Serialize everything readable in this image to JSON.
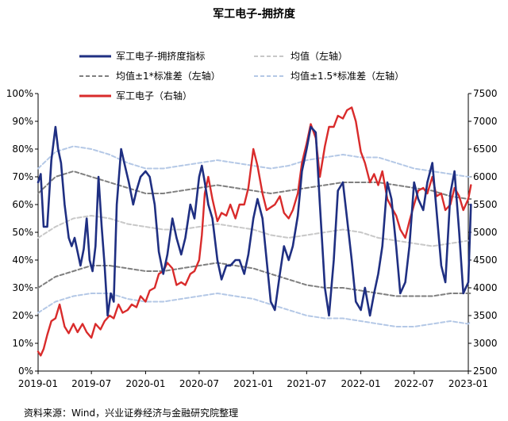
{
  "chart_data": {
    "type": "line",
    "title": "军工电子-拥挤度",
    "source": "资料来源：Wind，兴业证券经济与金融研究院整理",
    "x_ticks": [
      "2019-01",
      "2019-07",
      "2020-01",
      "2020-07",
      "2021-01",
      "2021-07",
      "2022-01",
      "2022-07",
      "2023-01"
    ],
    "x_range": [
      "2019-01",
      "2023-01"
    ],
    "y_left": {
      "ticks": [
        "0%",
        "10%",
        "20%",
        "30%",
        "40%",
        "50%",
        "60%",
        "70%",
        "80%",
        "90%",
        "100%"
      ],
      "range": [
        0,
        100
      ]
    },
    "y_right": {
      "ticks": [
        "2500",
        "3000",
        "3500",
        "4000",
        "4500",
        "5000",
        "5500",
        "6000",
        "6500",
        "7000",
        "7500"
      ],
      "range": [
        2500,
        7500
      ]
    },
    "legend": {
      "placement": "top",
      "items": [
        "军工电子-拥挤度指标",
        "均值（左轴）",
        "均值±1*标准差（左轴）",
        "均值±1.5*标准差（左轴）",
        "军工电子（右轴）"
      ]
    },
    "colors": {
      "crowding": "#1f2f82",
      "mean": "#c8c8c8",
      "std1": "#7f7f7f",
      "std15": "#b4c8e6",
      "index": "#d92b2b"
    },
    "series": [
      {
        "name": "军工电子-拥挤度指标",
        "axis": "left",
        "style": "solid",
        "x": [
          "2019-01-01",
          "2019-01-10",
          "2019-01-20",
          "2019-02-01",
          "2019-02-15",
          "2019-03-01",
          "2019-03-10",
          "2019-03-20",
          "2019-04-01",
          "2019-04-15",
          "2019-04-25",
          "2019-05-05",
          "2019-05-15",
          "2019-05-25",
          "2019-06-05",
          "2019-06-15",
          "2019-06-25",
          "2019-07-05",
          "2019-07-15",
          "2019-07-25",
          "2019-08-05",
          "2019-08-15",
          "2019-08-25",
          "2019-09-05",
          "2019-09-15",
          "2019-09-25",
          "2019-10-10",
          "2019-10-25",
          "2019-11-05",
          "2019-11-20",
          "2019-12-01",
          "2019-12-15",
          "2020-01-01",
          "2020-01-15",
          "2020-02-01",
          "2020-02-15",
          "2020-03-01",
          "2020-03-15",
          "2020-04-01",
          "2020-04-15",
          "2020-05-01",
          "2020-05-15",
          "2020-06-01",
          "2020-06-15",
          "2020-07-01",
          "2020-07-10",
          "2020-07-20",
          "2020-08-01",
          "2020-08-15",
          "2020-09-01",
          "2020-09-15",
          "2020-10-01",
          "2020-10-15",
          "2020-11-01",
          "2020-11-15",
          "2020-12-01",
          "2020-12-15",
          "2021-01-01",
          "2021-01-15",
          "2021-02-01",
          "2021-02-15",
          "2021-03-01",
          "2021-03-15",
          "2021-04-01",
          "2021-04-15",
          "2021-05-01",
          "2021-05-15",
          "2021-06-01",
          "2021-06-15",
          "2021-07-01",
          "2021-07-15",
          "2021-08-01",
          "2021-08-15",
          "2021-09-01",
          "2021-09-15",
          "2021-10-01",
          "2021-10-15",
          "2021-11-01",
          "2021-11-15",
          "2021-12-01",
          "2021-12-15",
          "2022-01-01",
          "2022-01-15",
          "2022-02-01",
          "2022-02-15",
          "2022-03-01",
          "2022-03-15",
          "2022-04-01",
          "2022-04-15",
          "2022-05-01",
          "2022-05-15",
          "2022-06-01",
          "2022-06-15",
          "2022-07-01",
          "2022-07-15",
          "2022-08-01",
          "2022-08-15",
          "2022-09-01",
          "2022-09-15",
          "2022-10-01",
          "2022-10-15",
          "2022-11-01",
          "2022-11-15",
          "2022-12-01",
          "2022-12-15",
          "2023-01-01",
          "2023-01-10"
        ],
        "values": [
          68,
          71,
          52,
          52,
          76,
          88,
          80,
          75,
          60,
          48,
          45,
          48,
          43,
          38,
          44,
          55,
          40,
          36,
          45,
          70,
          52,
          38,
          20,
          28,
          25,
          60,
          80,
          73,
          68,
          60,
          65,
          70,
          72,
          70,
          60,
          43,
          35,
          42,
          55,
          48,
          42,
          48,
          60,
          55,
          70,
          74,
          68,
          60,
          55,
          40,
          33,
          38,
          38,
          40,
          40,
          35,
          42,
          55,
          62,
          55,
          40,
          25,
          22,
          35,
          45,
          40,
          45,
          56,
          72,
          80,
          88,
          86,
          60,
          30,
          20,
          40,
          65,
          68,
          55,
          40,
          25,
          22,
          30,
          20,
          28,
          35,
          45,
          68,
          62,
          45,
          28,
          32,
          45,
          68,
          62,
          58,
          68,
          75,
          58,
          38,
          32,
          64,
          72,
          50,
          28,
          32,
          60
        ]
      },
      {
        "name": "均值（左轴）",
        "axis": "left",
        "style": "dashed",
        "x": [
          "2019-01-01",
          "2019-03-01",
          "2019-05-01",
          "2019-07-01",
          "2019-09-01",
          "2019-11-01",
          "2020-01-01",
          "2020-03-01",
          "2020-05-01",
          "2020-07-01",
          "2020-09-01",
          "2020-11-01",
          "2021-01-01",
          "2021-03-01",
          "2021-05-01",
          "2021-07-01",
          "2021-09-01",
          "2021-11-01",
          "2022-01-01",
          "2022-03-01",
          "2022-05-01",
          "2022-07-01",
          "2022-09-01",
          "2022-11-01",
          "2023-01-01",
          "2023-01-10"
        ],
        "values": [
          48,
          52,
          55,
          56,
          55,
          53,
          52,
          51,
          51,
          52,
          53,
          52,
          51,
          49,
          48,
          49,
          50,
          51,
          50,
          48,
          47,
          46,
          45,
          46,
          47,
          47
        ]
      },
      {
        "name": "均值+1*标准差（左轴）",
        "axis": "left",
        "style": "dashed",
        "x": [
          "2019-01-01",
          "2019-03-01",
          "2019-05-01",
          "2019-07-01",
          "2019-09-01",
          "2019-11-01",
          "2020-01-01",
          "2020-03-01",
          "2020-05-01",
          "2020-07-01",
          "2020-09-01",
          "2020-11-01",
          "2021-01-01",
          "2021-03-01",
          "2021-05-01",
          "2021-07-01",
          "2021-09-01",
          "2021-11-01",
          "2022-01-01",
          "2022-03-01",
          "2022-05-01",
          "2022-07-01",
          "2022-09-01",
          "2022-11-01",
          "2023-01-01",
          "2023-01-10"
        ],
        "values": [
          64,
          70,
          72,
          70,
          68,
          66,
          64,
          64,
          65,
          66,
          67,
          66,
          65,
          64,
          65,
          66,
          67,
          68,
          68,
          68,
          67,
          66,
          65,
          63,
          62,
          62
        ]
      },
      {
        "name": "均值-1*标准差（左轴）",
        "axis": "left",
        "style": "dashed",
        "x": [
          "2019-01-01",
          "2019-03-01",
          "2019-05-01",
          "2019-07-01",
          "2019-09-01",
          "2019-11-01",
          "2020-01-01",
          "2020-03-01",
          "2020-05-01",
          "2020-07-01",
          "2020-09-01",
          "2020-11-01",
          "2021-01-01",
          "2021-03-01",
          "2021-05-01",
          "2021-07-01",
          "2021-09-01",
          "2021-11-01",
          "2022-01-01",
          "2022-03-01",
          "2022-05-01",
          "2022-07-01",
          "2022-09-01",
          "2022-11-01",
          "2023-01-01",
          "2023-01-10"
        ],
        "values": [
          30,
          34,
          36,
          38,
          38,
          37,
          36,
          36,
          37,
          38,
          39,
          38,
          37,
          35,
          33,
          31,
          30,
          30,
          29,
          28,
          27,
          27,
          27,
          28,
          28,
          28
        ]
      },
      {
        "name": "均值+1.5*标准差（左轴）",
        "axis": "left",
        "style": "dashed",
        "x": [
          "2019-01-01",
          "2019-03-01",
          "2019-05-01",
          "2019-07-01",
          "2019-09-01",
          "2019-11-01",
          "2020-01-01",
          "2020-03-01",
          "2020-05-01",
          "2020-07-01",
          "2020-09-01",
          "2020-11-01",
          "2021-01-01",
          "2021-03-01",
          "2021-05-01",
          "2021-07-01",
          "2021-09-01",
          "2021-11-01",
          "2022-01-01",
          "2022-03-01",
          "2022-05-01",
          "2022-07-01",
          "2022-09-01",
          "2022-11-01",
          "2023-01-01",
          "2023-01-10"
        ],
        "values": [
          73,
          79,
          81,
          80,
          78,
          75,
          73,
          73,
          74,
          75,
          76,
          75,
          74,
          73,
          74,
          76,
          77,
          78,
          77,
          77,
          75,
          73,
          72,
          71,
          70,
          70
        ]
      },
      {
        "name": "均值-1.5*标准差（左轴）",
        "axis": "left",
        "style": "dashed",
        "x": [
          "2019-01-01",
          "2019-03-01",
          "2019-05-01",
          "2019-07-01",
          "2019-09-01",
          "2019-11-01",
          "2020-01-01",
          "2020-03-01",
          "2020-05-01",
          "2020-07-01",
          "2020-09-01",
          "2020-11-01",
          "2021-01-01",
          "2021-03-01",
          "2021-05-01",
          "2021-07-01",
          "2021-09-01",
          "2021-11-01",
          "2022-01-01",
          "2022-03-01",
          "2022-05-01",
          "2022-07-01",
          "2022-09-01",
          "2022-11-01",
          "2023-01-01",
          "2023-01-10"
        ],
        "values": [
          21,
          25,
          27,
          28,
          28,
          26,
          25,
          25,
          26,
          27,
          28,
          27,
          26,
          24,
          22,
          20,
          19,
          19,
          18,
          17,
          16,
          16,
          17,
          18,
          17,
          18
        ]
      },
      {
        "name": "军工电子（右轴）",
        "axis": "right",
        "style": "solid",
        "x": [
          "2019-01-01",
          "2019-01-10",
          "2019-01-20",
          "2019-02-01",
          "2019-02-15",
          "2019-03-01",
          "2019-03-15",
          "2019-04-01",
          "2019-04-15",
          "2019-05-01",
          "2019-05-15",
          "2019-06-01",
          "2019-06-15",
          "2019-07-01",
          "2019-07-15",
          "2019-08-01",
          "2019-08-15",
          "2019-09-01",
          "2019-09-15",
          "2019-10-01",
          "2019-10-15",
          "2019-11-01",
          "2019-11-15",
          "2019-12-01",
          "2019-12-15",
          "2020-01-01",
          "2020-01-15",
          "2020-02-01",
          "2020-02-15",
          "2020-03-01",
          "2020-03-15",
          "2020-04-01",
          "2020-04-15",
          "2020-05-01",
          "2020-05-15",
          "2020-06-01",
          "2020-06-15",
          "2020-07-01",
          "2020-07-10",
          "2020-07-20",
          "2020-08-01",
          "2020-08-15",
          "2020-09-01",
          "2020-09-15",
          "2020-10-01",
          "2020-10-15",
          "2020-11-01",
          "2020-11-15",
          "2020-12-01",
          "2020-12-15",
          "2021-01-01",
          "2021-01-15",
          "2021-02-01",
          "2021-02-15",
          "2021-03-01",
          "2021-03-15",
          "2021-04-01",
          "2021-04-15",
          "2021-05-01",
          "2021-05-15",
          "2021-06-01",
          "2021-06-15",
          "2021-07-01",
          "2021-07-15",
          "2021-08-01",
          "2021-08-15",
          "2021-09-01",
          "2021-09-15",
          "2021-10-01",
          "2021-10-15",
          "2021-11-01",
          "2021-11-15",
          "2021-12-01",
          "2021-12-15",
          "2022-01-01",
          "2022-01-15",
          "2022-02-01",
          "2022-02-15",
          "2022-03-01",
          "2022-03-15",
          "2022-04-01",
          "2022-04-15",
          "2022-05-01",
          "2022-05-15",
          "2022-06-01",
          "2022-06-15",
          "2022-07-01",
          "2022-07-15",
          "2022-08-01",
          "2022-08-15",
          "2022-09-01",
          "2022-09-15",
          "2022-10-01",
          "2022-10-15",
          "2022-11-01",
          "2022-11-15",
          "2022-12-01",
          "2022-12-15",
          "2023-01-01",
          "2023-01-10"
        ],
        "values": [
          2850,
          2780,
          2900,
          3150,
          3400,
          3450,
          3700,
          3300,
          3180,
          3350,
          3200,
          3350,
          3200,
          3100,
          3350,
          3250,
          3400,
          3500,
          3450,
          3700,
          3550,
          3600,
          3700,
          3650,
          3850,
          3750,
          3950,
          4000,
          4250,
          4300,
          4450,
          4350,
          4050,
          4100,
          4050,
          4250,
          4300,
          4500,
          4950,
          5700,
          6000,
          5600,
          5200,
          5350,
          5300,
          5500,
          5250,
          5500,
          5500,
          5800,
          6500,
          6200,
          5700,
          5400,
          5450,
          5500,
          5650,
          5350,
          5250,
          5400,
          5700,
          6250,
          6600,
          6950,
          6700,
          6000,
          6550,
          6900,
          6900,
          7100,
          7050,
          7200,
          7250,
          7000,
          6450,
          6250,
          5900,
          6050,
          5850,
          6100,
          5600,
          5450,
          5300,
          5050,
          4900,
          5200,
          5500,
          5750,
          5800,
          5700,
          6000,
          5650,
          5700,
          5400,
          5500,
          5800,
          5650,
          5400,
          5600,
          5850
        ]
      }
    ]
  }
}
